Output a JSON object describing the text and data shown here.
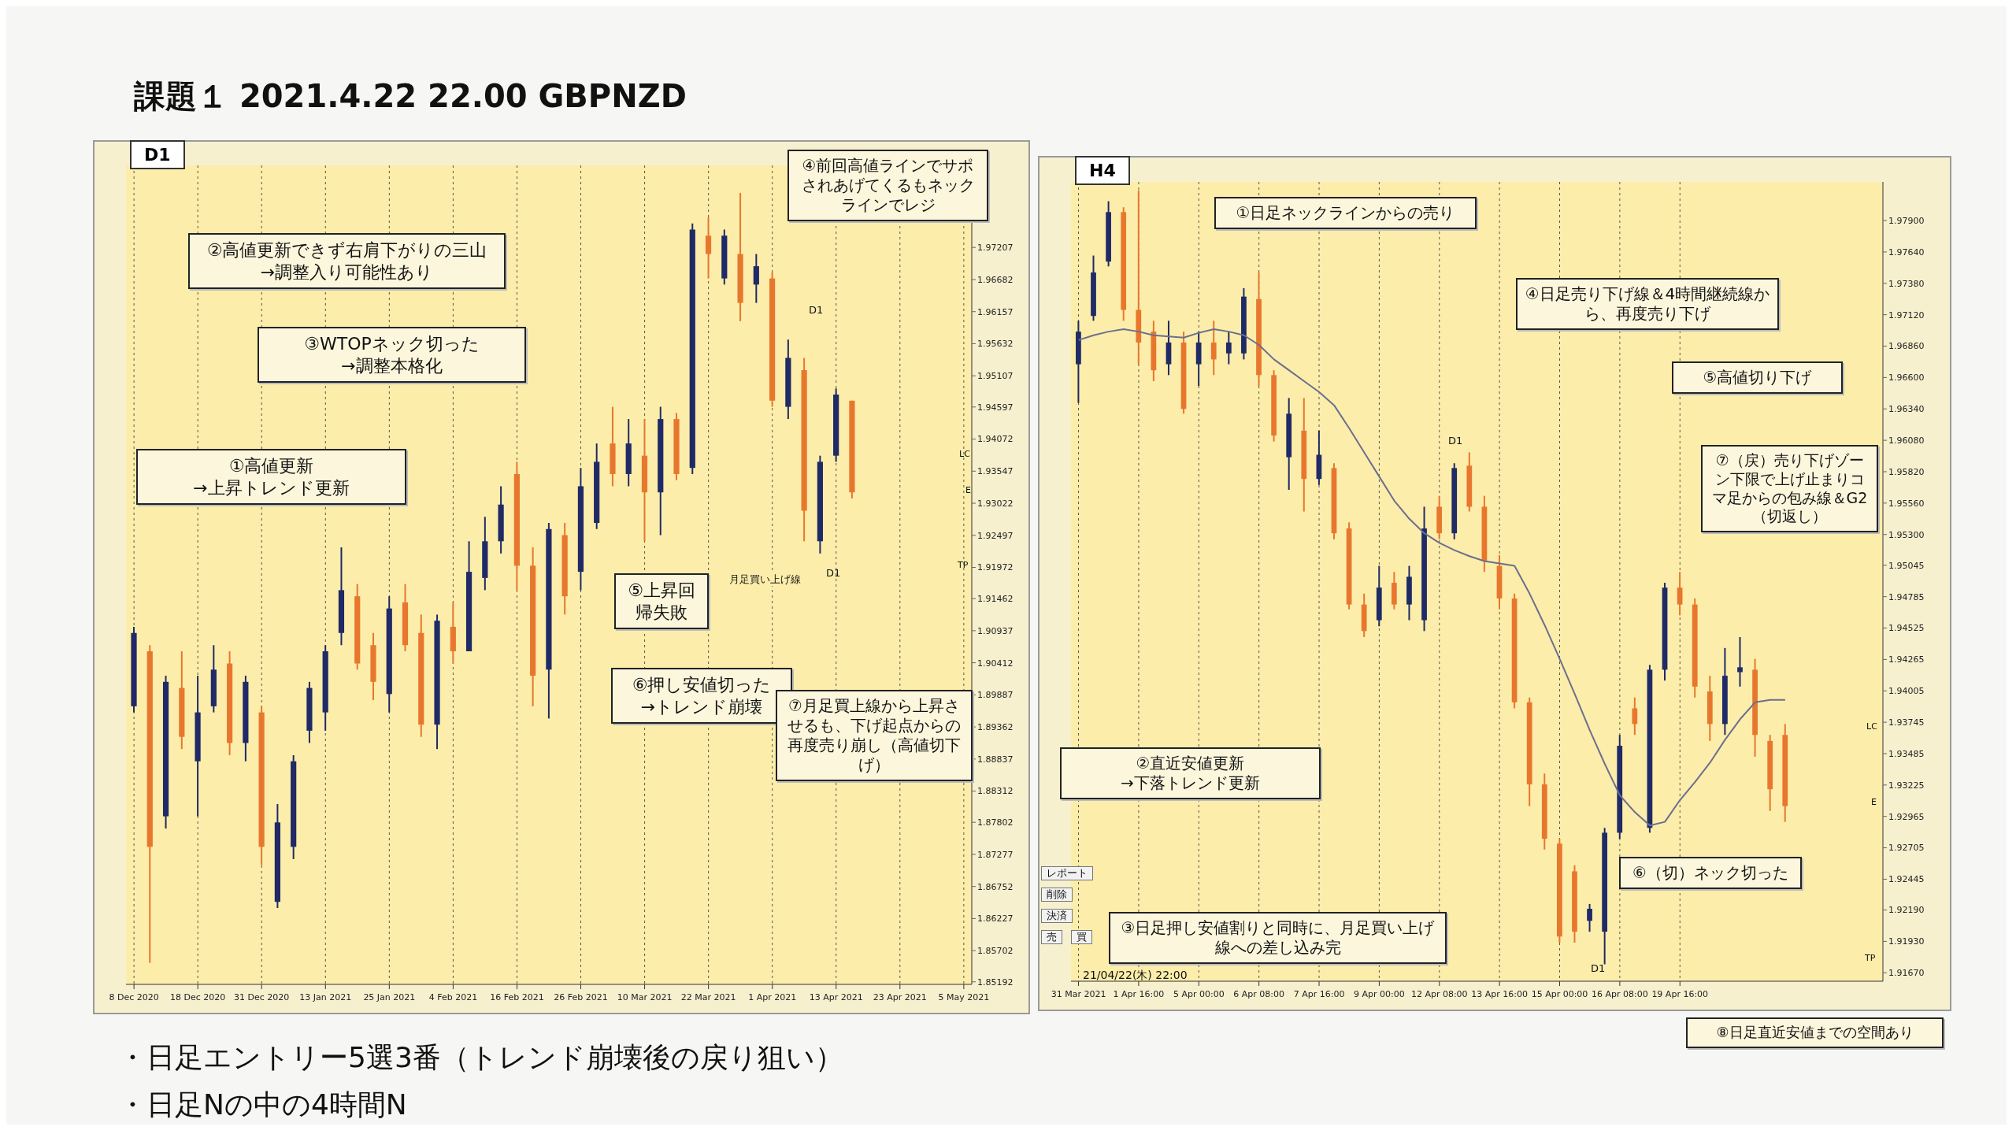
{
  "chart_data": [
    {
      "type": "candlestick",
      "title": "D1",
      "subtitle": "課題１ 2021.4.22 22.00 GBPNZD",
      "grid": "x",
      "categories": [
        "8 Dec 2020",
        null,
        null,
        null,
        "18 Dec 2020",
        null,
        null,
        null,
        "31 Dec 2020",
        null,
        null,
        null,
        "13 Jan 2021",
        null,
        null,
        null,
        "25 Jan 2021",
        null,
        null,
        null,
        "4 Feb 2021",
        null,
        null,
        null,
        "16 Feb 2021",
        null,
        null,
        null,
        "26 Feb 2021",
        null,
        null,
        null,
        "10 Mar 2021",
        null,
        null,
        null,
        "22 Mar 2021",
        null,
        null,
        null,
        "1 Apr 2021",
        null,
        null,
        null,
        "13 Apr 2021",
        null,
        null,
        null,
        "23 Apr 2021",
        null,
        null,
        null,
        "5 May 2021"
      ],
      "ohlc": [
        [
          1.897,
          1.91,
          1.896,
          1.909
        ],
        [
          1.906,
          1.907,
          1.855,
          1.874
        ],
        [
          1.879,
          1.902,
          1.877,
          1.901
        ],
        [
          1.9,
          1.906,
          1.89,
          1.892
        ],
        [
          1.888,
          1.902,
          1.879,
          1.896
        ],
        [
          1.897,
          1.907,
          1.896,
          1.903
        ],
        [
          1.904,
          1.906,
          1.889,
          1.891
        ],
        [
          1.891,
          1.902,
          1.888,
          1.901
        ],
        [
          1.896,
          1.897,
          1.871,
          1.874
        ],
        [
          1.865,
          1.881,
          1.864,
          1.878
        ],
        [
          1.874,
          1.889,
          1.872,
          1.888
        ],
        [
          1.893,
          1.901,
          1.891,
          1.9
        ],
        [
          1.896,
          1.907,
          1.893,
          1.906
        ],
        [
          1.909,
          1.923,
          1.907,
          1.916
        ],
        [
          1.915,
          1.917,
          1.903,
          1.904
        ],
        [
          1.907,
          1.909,
          1.898,
          1.901
        ],
        [
          1.899,
          1.915,
          1.896,
          1.913
        ],
        [
          1.914,
          1.917,
          1.906,
          1.907
        ],
        [
          1.909,
          1.912,
          1.892,
          1.894
        ],
        [
          1.894,
          1.912,
          1.89,
          1.911
        ],
        [
          1.91,
          1.914,
          1.904,
          1.906
        ],
        [
          1.906,
          1.924,
          1.906,
          1.919
        ],
        [
          1.918,
          1.928,
          1.916,
          1.924
        ],
        [
          1.924,
          1.933,
          1.922,
          1.93
        ],
        [
          1.935,
          1.937,
          1.916,
          1.92
        ],
        [
          1.92,
          1.923,
          1.897,
          1.902
        ],
        [
          1.903,
          1.927,
          1.895,
          1.926
        ],
        [
          1.925,
          1.927,
          1.912,
          1.915
        ],
        [
          1.919,
          1.936,
          1.916,
          1.933
        ],
        [
          1.927,
          1.94,
          1.926,
          1.937
        ],
        [
          1.94,
          1.946,
          1.933,
          1.935
        ],
        [
          1.935,
          1.944,
          1.933,
          1.94
        ],
        [
          1.938,
          1.944,
          1.924,
          1.932
        ],
        [
          1.932,
          1.946,
          1.925,
          1.944
        ],
        [
          1.944,
          1.945,
          1.934,
          1.935
        ],
        [
          1.936,
          1.976,
          1.935,
          1.975
        ],
        [
          1.974,
          1.977,
          1.967,
          1.971
        ],
        [
          1.967,
          1.975,
          1.966,
          1.974
        ],
        [
          1.971,
          1.981,
          1.96,
          1.963
        ],
        [
          1.966,
          1.971,
          1.963,
          1.969
        ],
        [
          1.967,
          1.968,
          1.946,
          1.947
        ],
        [
          1.946,
          1.957,
          1.944,
          1.954
        ],
        [
          1.952,
          1.954,
          1.924,
          1.929
        ],
        [
          1.924,
          1.938,
          1.922,
          1.937
        ],
        [
          1.938,
          1.949,
          1.937,
          1.948
        ],
        [
          1.947,
          1.947,
          1.931,
          1.932
        ],
        null,
        null,
        null,
        null,
        null,
        null,
        null
      ],
      "ylim": [
        1.8515,
        1.9855
      ],
      "yticks": [
        1.97207,
        1.96682,
        1.96157,
        1.95632,
        1.95107,
        1.94597,
        1.94072,
        1.93547,
        1.93022,
        1.92497,
        1.91972,
        1.91462,
        1.90937,
        1.90412,
        1.89887,
        1.89362,
        1.88837,
        1.88312,
        1.87802,
        1.87277,
        1.86752,
        1.86227,
        1.85702,
        1.85192
      ],
      "annotations": [
        "②高値更新できず右肩下がりの三山\n→調整入り可能性あり",
        "③WTOPネック切った\n→調整本格化",
        "①高値更新\n→上昇トレンド更新",
        "④前回高値ラインでサポされあげてくるもネックラインでレジ",
        "⑤上昇回帰失敗",
        "⑥押し安値切った\n→トレンド崩壊",
        "⑦月足買上線から上昇させるも、下げ起点からの再度売り崩し（高値切下げ）",
        "月足買い上げ線",
        "D1",
        "D1",
        "LC",
        "E",
        "TP"
      ]
    },
    {
      "type": "candlestick",
      "title": "H4",
      "grid": "x",
      "categories": [
        "31 Mar 2021",
        null,
        null,
        null,
        "1 Apr 16:00",
        null,
        null,
        null,
        "5 Apr 00:00",
        null,
        null,
        null,
        "6 Apr 08:00",
        null,
        null,
        null,
        "7 Apr 16:00",
        null,
        null,
        null,
        "9 Apr 00:00",
        null,
        null,
        null,
        "12 Apr 08:00",
        null,
        null,
        null,
        "13 Apr 16:00",
        null,
        null,
        null,
        "15 Apr 00:00",
        null,
        null,
        null,
        "16 Apr 08:00",
        null,
        null,
        null,
        "19 Apr 16:00",
        null,
        null,
        null,
        null,
        null,
        null,
        null,
        null,
        null,
        null,
        null,
        null,
        null
      ],
      "ohlc": [
        [
          1.9671,
          1.9707,
          1.9639,
          1.9698
        ],
        [
          1.9711,
          1.9761,
          1.9707,
          1.9747
        ],
        [
          1.9756,
          1.9806,
          1.9752,
          1.9797
        ],
        [
          1.9797,
          1.9801,
          1.9707,
          1.9716
        ],
        [
          1.9716,
          1.9815,
          1.9671,
          1.9689
        ],
        [
          1.9698,
          1.9707,
          1.9657,
          1.9666
        ],
        [
          1.9671,
          1.9707,
          1.9662,
          1.9689
        ],
        [
          1.9689,
          1.9698,
          1.963,
          1.9634
        ],
        [
          1.9671,
          1.9698,
          1.9653,
          1.9689
        ],
        [
          1.9689,
          1.9707,
          1.9662,
          1.9675
        ],
        [
          1.968,
          1.9698,
          1.9671,
          1.9689
        ],
        [
          1.968,
          1.9734,
          1.9675,
          1.9727
        ],
        [
          1.9725,
          1.9747,
          1.9653,
          1.9662
        ],
        [
          1.9662,
          1.9666,
          1.9607,
          1.9612
        ],
        [
          1.9594,
          1.9643,
          1.9567,
          1.963
        ],
        [
          1.9616,
          1.9643,
          1.9549,
          1.9576
        ],
        [
          1.9576,
          1.9616,
          1.9571,
          1.9596
        ],
        [
          1.9585,
          1.9589,
          1.9526,
          1.9531
        ],
        [
          1.9535,
          1.954,
          1.9468,
          1.9472
        ],
        [
          1.9472,
          1.9481,
          1.9445,
          1.945
        ],
        [
          1.9459,
          1.9504,
          1.9454,
          1.9486
        ],
        [
          1.949,
          1.9499,
          1.9468,
          1.9472
        ],
        [
          1.9472,
          1.9504,
          1.9459,
          1.9495
        ],
        [
          1.9459,
          1.9553,
          1.945,
          1.9535
        ],
        [
          1.9553,
          1.9562,
          1.9526,
          1.9531
        ],
        [
          1.9531,
          1.9589,
          1.9526,
          1.9585
        ],
        [
          1.9587,
          1.9598,
          1.9549,
          1.9553
        ],
        [
          1.9553,
          1.9562,
          1.9499,
          1.9508
        ],
        [
          1.9504,
          1.9513,
          1.9468,
          1.9477
        ],
        [
          1.9477,
          1.9481,
          1.9386,
          1.9391
        ],
        [
          1.9391,
          1.9395,
          1.9305,
          1.9323
        ],
        [
          1.9323,
          1.9332,
          1.9269,
          1.9278
        ],
        [
          1.9274,
          1.9278,
          1.9192,
          1.9197
        ],
        [
          1.9251,
          1.9256,
          1.9192,
          1.9201
        ],
        [
          1.921,
          1.9224,
          1.9201,
          1.922
        ],
        [
          1.9201,
          1.9287,
          1.9174,
          1.9283
        ],
        [
          1.9283,
          1.9364,
          1.9278,
          1.9355
        ],
        [
          1.9386,
          1.9395,
          1.9364,
          1.9373
        ],
        [
          1.9287,
          1.9422,
          1.9283,
          1.9418
        ],
        [
          1.9418,
          1.949,
          1.9409,
          1.9486
        ],
        [
          1.9486,
          1.9499,
          1.9463,
          1.9472
        ],
        [
          1.9472,
          1.9477,
          1.9395,
          1.9404
        ],
        [
          1.94,
          1.9413,
          1.9359,
          1.9373
        ],
        [
          1.9373,
          1.9436,
          1.9364,
          1.9413
        ],
        [
          1.9416,
          1.9445,
          1.9404,
          1.942
        ],
        [
          1.9418,
          1.9427,
          1.9346,
          1.9364
        ],
        [
          1.9359,
          1.9364,
          1.9301,
          1.9319
        ],
        [
          1.9364,
          1.9373,
          1.9292,
          1.9305
        ],
        null,
        null,
        null,
        null,
        null,
        null
      ],
      "series": [
        {
          "type": "line",
          "color": "#6b6f8e",
          "values": [
            1.9691,
            1.9695,
            1.9698,
            1.97,
            1.9698,
            1.9695,
            1.9694,
            1.9693,
            1.9697,
            1.97,
            1.9698,
            1.9695,
            1.9687,
            1.9675,
            1.9666,
            1.9657,
            1.9648,
            1.9637,
            1.9618,
            1.9598,
            1.9578,
            1.9558,
            1.9543,
            1.9531,
            1.9523,
            1.9517,
            1.9512,
            1.9508,
            1.9506,
            1.9504,
            1.9481,
            1.9455,
            1.9427,
            1.9398,
            1.9368,
            1.934,
            1.9314,
            1.93,
            1.9289,
            1.9292,
            1.931,
            1.9325,
            1.9341,
            1.936,
            1.9377,
            1.9391,
            1.9393,
            1.9393,
            null,
            null,
            null,
            null,
            null,
            null
          ]
        }
      ],
      "ylim": [
        1.916,
        1.9822
      ],
      "yticks": [
        {
          "value": 1.979,
          "label": "1.97900"
        },
        {
          "value": 1.9764,
          "label": "1.97640"
        },
        {
          "value": 1.9738,
          "label": "1.97380"
        },
        {
          "value": 1.9712,
          "label": "1.97120"
        },
        {
          "value": 1.9686,
          "label": "1.96860"
        },
        {
          "value": 1.966,
          "label": "1.96600"
        },
        {
          "value": 1.9634,
          "label": "1.96340"
        },
        {
          "value": 1.9608,
          "label": "1.96080"
        },
        {
          "value": 1.9582,
          "label": "1.95820"
        },
        {
          "value": 1.9556,
          "label": "1.95560"
        },
        {
          "value": 1.953,
          "label": "1.95300"
        },
        {
          "value": 1.95045,
          "label": "1.95045"
        },
        {
          "value": 1.94785,
          "label": "1.94785"
        },
        {
          "value": 1.94525,
          "label": "1.94525"
        },
        {
          "value": 1.94265,
          "label": "1.94265"
        },
        {
          "value": 1.94005,
          "label": "1.94005"
        },
        {
          "value": 1.93745,
          "label": "1.93745"
        },
        {
          "value": 1.93485,
          "label": "1.93485"
        },
        {
          "value": 1.93225,
          "label": "1.93225"
        },
        {
          "value": 1.92965,
          "label": "1.92965"
        },
        {
          "value": 1.92705,
          "label": "1.92705"
        },
        {
          "value": 1.92445,
          "label": "1.92445"
        },
        {
          "value": 1.9219,
          "label": "1.92190"
        },
        {
          "value": 1.9193,
          "label": "1.91930"
        },
        {
          "value": 1.9167,
          "label": "1.91670"
        }
      ],
      "annotations": [
        "①日足ネックラインからの売り",
        "②直近安値更新\n→下落トレンド更新",
        "③日足押し安値割りと同時に、月足買い上げ線への差し込み完",
        "④日足売り下げ線＆4時間継続線から、再度売り下げ",
        "⑤高値切り下げ",
        "⑥（切）ネック切った",
        "⑦（戻）売り下げゾーン下限で上げ止まりコマ足からの包み線＆G2（切返し）",
        "⑧日足直近安値までの空間あり",
        "D1",
        "D1",
        "LC",
        "E",
        "TP",
        "21/04/22(木) 22:00",
        "レポート",
        "削除",
        "決済",
        "売",
        "買",
        "・日足エントリー5選3番（トレンド崩壊後の戻り狙い）",
        "・日足Nの中の4時間N"
      ]
    }
  ]
}
